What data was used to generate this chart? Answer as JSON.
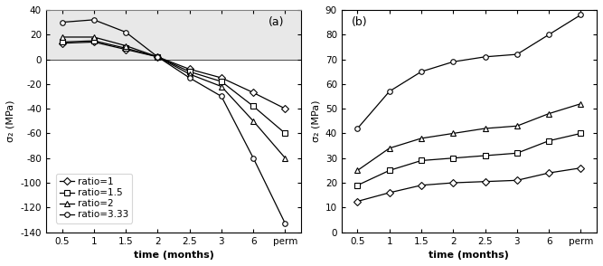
{
  "x_labels": [
    "0.5",
    "1",
    "1.5",
    "2",
    "2.5",
    "3",
    "6",
    "perm"
  ],
  "x_numeric": [
    1,
    2,
    3,
    4,
    5,
    6,
    7,
    8
  ],
  "x_ticks_pos": [
    1,
    2,
    3,
    4,
    5,
    6,
    7,
    8
  ],
  "panel_a": {
    "title": "(a)",
    "ylabel": "σ₂ (MPa)",
    "xlabel": "time (months)",
    "ylim": [
      -140,
      40
    ],
    "yticks": [
      40,
      20,
      0,
      -20,
      -40,
      -60,
      -80,
      -100,
      -120,
      -140
    ],
    "series": [
      {
        "label": "ratio=1",
        "marker": "D",
        "data": [
          13,
          14,
          8,
          2,
          -8,
          -15,
          -27,
          -40
        ]
      },
      {
        "label": "ratio=1.5",
        "marker": "s",
        "data": [
          14,
          15,
          9,
          2,
          -10,
          -18,
          -38,
          -60
        ]
      },
      {
        "label": "ratio=2",
        "marker": "^",
        "data": [
          18,
          18,
          11,
          2,
          -12,
          -22,
          -50,
          -80
        ]
      },
      {
        "label": "ratio=3.33",
        "marker": "o",
        "data": [
          30,
          32,
          22,
          2,
          -15,
          -30,
          -80,
          -133
        ]
      }
    ]
  },
  "panel_b": {
    "title": "(b)",
    "ylabel": "σ₂ (MPa)",
    "xlabel": "time (months)",
    "ylim": [
      0,
      90
    ],
    "yticks": [
      0,
      10,
      20,
      30,
      40,
      50,
      60,
      70,
      80,
      90
    ],
    "series": [
      {
        "label": "ratio=1",
        "marker": "D",
        "data": [
          12.5,
          16,
          19,
          20,
          20.5,
          21,
          24,
          26
        ]
      },
      {
        "label": "ratio=1.5",
        "marker": "s",
        "data": [
          19,
          25,
          29,
          30,
          31,
          32,
          37,
          40
        ]
      },
      {
        "label": "ratio=2",
        "marker": "^",
        "data": [
          25,
          34,
          38,
          40,
          42,
          43,
          48,
          52
        ]
      },
      {
        "label": "ratio=3.33",
        "marker": "o",
        "data": [
          42,
          57,
          65,
          69,
          71,
          72,
          80,
          88
        ]
      }
    ]
  },
  "line_color": "#000000",
  "marker_size": 4,
  "font_size_label": 8,
  "font_size_tick": 7.5,
  "font_size_legend": 7.5,
  "font_size_title": 9,
  "bg_top_color": "#d3d3d3"
}
